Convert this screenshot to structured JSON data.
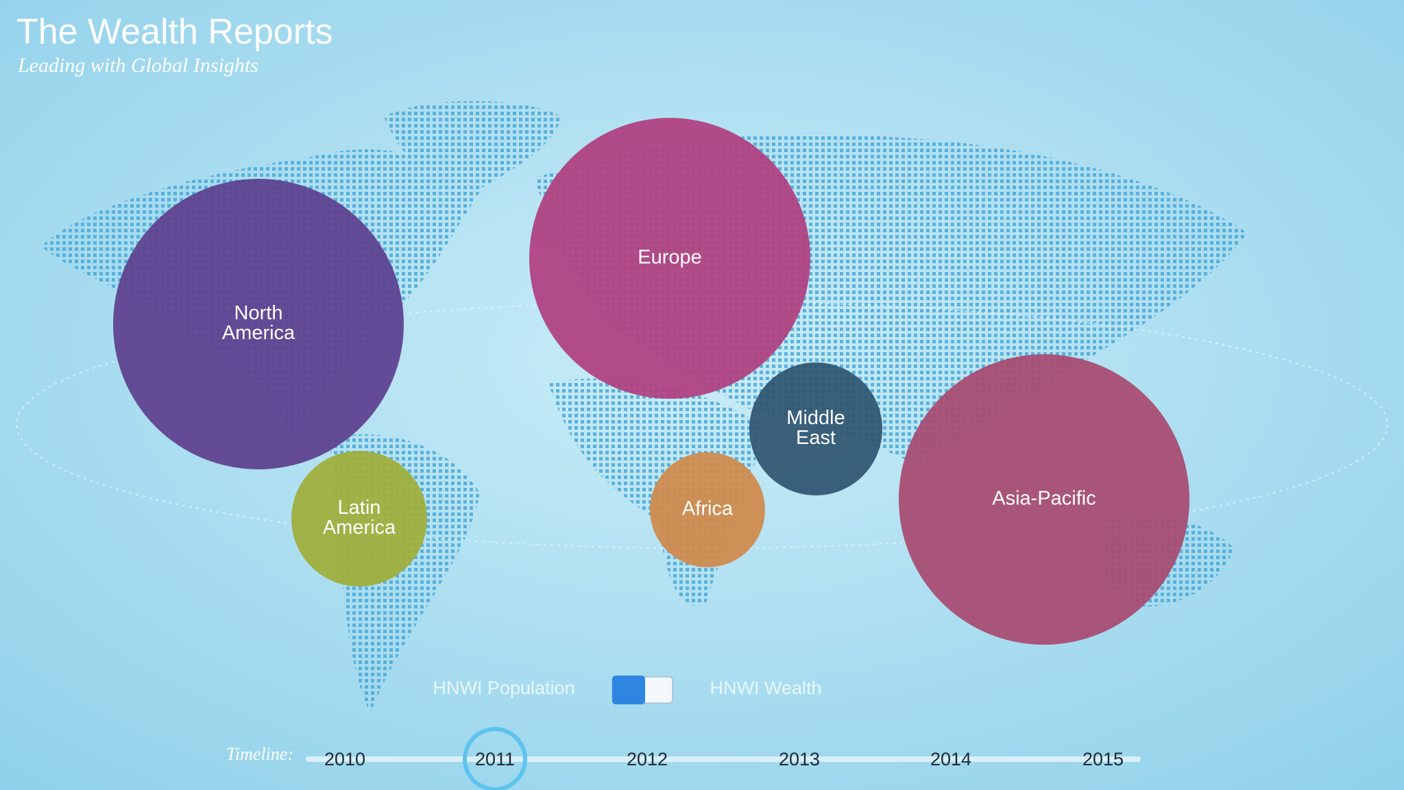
{
  "header": {
    "title": "The Wealth Reports",
    "subtitle": "Leading with Global Insights"
  },
  "regions": [
    {
      "label": [
        "North",
        "America"
      ],
      "color": "#5e3f8f"
    },
    {
      "label": [
        "Europe"
      ],
      "color": "#b0407f"
    },
    {
      "label": [
        "Middle",
        "East"
      ],
      "color": "#2f5570"
    },
    {
      "label": [
        "Africa"
      ],
      "color": "#d08a4a"
    },
    {
      "label": [
        "Latin",
        "America"
      ],
      "color": "#9fae3a"
    },
    {
      "label": [
        "Asia-Pacific"
      ],
      "color": "#a84a70"
    }
  ],
  "toggle": {
    "left": "HNWI Population",
    "right": "HNWI Wealth"
  },
  "timeline": {
    "label": "Timeline:",
    "years": [
      "2010",
      "2011",
      "2012",
      "2013",
      "2014",
      "2015"
    ],
    "selected": 1
  }
}
